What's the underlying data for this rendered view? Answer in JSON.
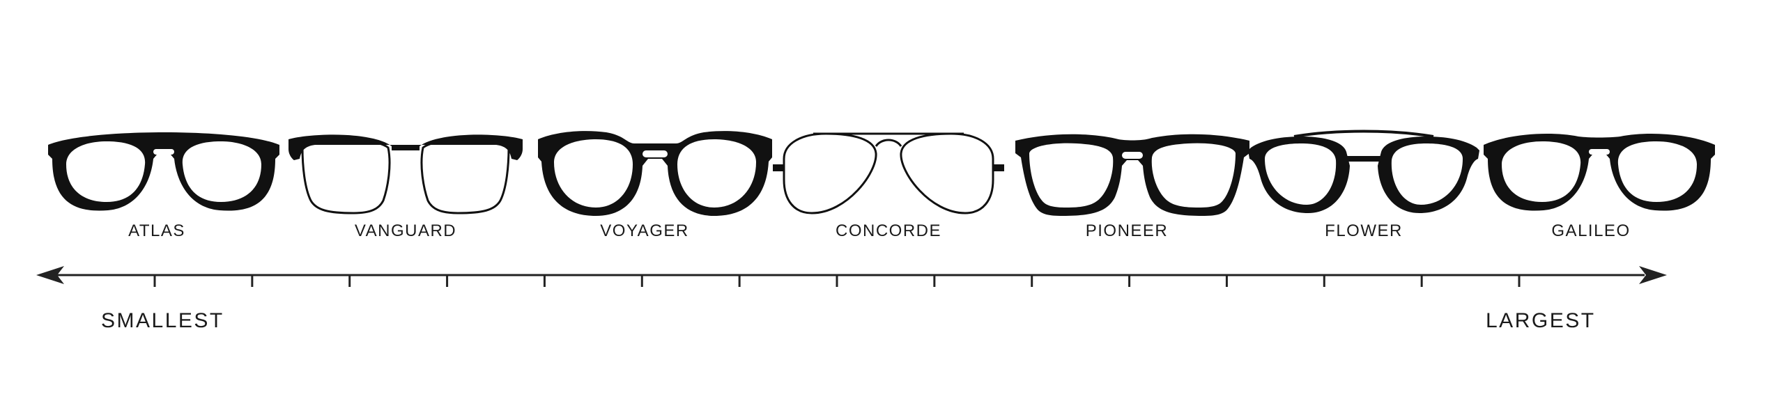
{
  "colors": {
    "ink": "#111111",
    "background": "#ffffff"
  },
  "frames": [
    {
      "name": "ATLAS",
      "style": "thick-keyhole"
    },
    {
      "name": "VANGUARD",
      "style": "thin-brow"
    },
    {
      "name": "VOYAGER",
      "style": "thick-round"
    },
    {
      "name": "CONCORDE",
      "style": "aviator"
    },
    {
      "name": "PIONEER",
      "style": "thick-wayfarer"
    },
    {
      "name": "FLOWER",
      "style": "thin-top-bar"
    },
    {
      "name": "GALILEO",
      "style": "thick-keyhole"
    }
  ],
  "scale": {
    "min_label": "SMALLEST",
    "max_label": "LARGEST",
    "tick_count": 15
  }
}
